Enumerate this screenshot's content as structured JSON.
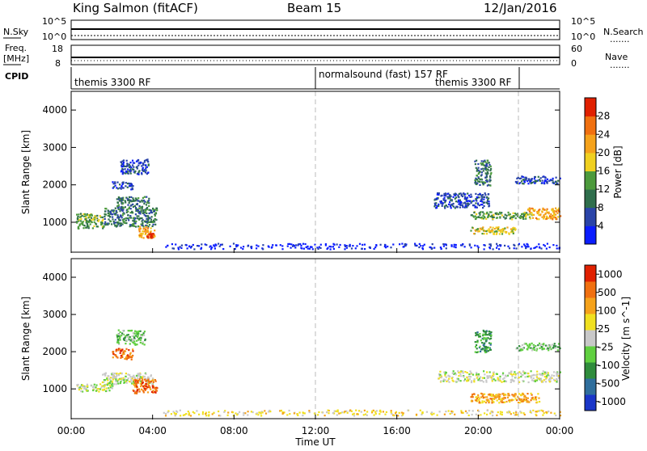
{
  "header": {
    "station": "King Salmon (fitACF)",
    "beam": "Beam 15",
    "date": "12/Jan/2016"
  },
  "left_labels": {
    "nsky": "N.Sky",
    "freq": "Freq.",
    "mhz": "[MHz]",
    "cpid": "CPID"
  },
  "right_labels": {
    "nsearch": "N.Search",
    "nave": "Nave",
    "dots": "......."
  },
  "noise_axis": {
    "left_top": "10^5",
    "left_bottom": "10^0",
    "right_top": "10^5",
    "right_bottom": "10^0"
  },
  "freq_axis": {
    "left_top": "18",
    "left_bottom": "8",
    "right_top": "60",
    "right_bottom": "0"
  },
  "cpid": [
    "themis 3300 RF",
    "normalsound (fast) 157 RF",
    "themis 3300 RF"
  ],
  "x_axis": {
    "label": "Time UT",
    "ticks": [
      "00:00",
      "04:00",
      "08:00",
      "12:00",
      "16:00",
      "20:00",
      "00:00"
    ]
  },
  "chart_data": [
    {
      "type": "heatmap",
      "ylabel": "Slant Range [km]",
      "yticks": [
        "1000",
        "2000",
        "3000",
        "4000"
      ],
      "ylim": [
        200,
        4500
      ],
      "xlim": [
        0,
        24
      ],
      "colorbar": {
        "label": "Power [dB]",
        "ticks": [
          "4",
          "8",
          "12",
          "16",
          "20",
          "24",
          "28"
        ],
        "colors": [
          "#0b1dff",
          "#2a44a8",
          "#2f6e4c",
          "#4c9a3c",
          "#f0d020",
          "#f5a21b",
          "#f07010",
          "#e02000"
        ]
      },
      "regions": [
        {
          "x": [
            0.2,
            1.6
          ],
          "y": [
            850,
            1250
          ],
          "level": 3
        },
        {
          "x": [
            1.6,
            4.2
          ],
          "y": [
            900,
            1400
          ],
          "level": 2
        },
        {
          "x": [
            2.2,
            3.8
          ],
          "y": [
            1400,
            1700
          ],
          "level": 2
        },
        {
          "x": [
            2.4,
            3.8
          ],
          "y": [
            2300,
            2700
          ],
          "level": 1
        },
        {
          "x": [
            3.3,
            4.1
          ],
          "y": [
            600,
            900
          ],
          "level": 5
        },
        {
          "x": [
            3.6,
            4.0
          ],
          "y": [
            600,
            720
          ],
          "level": 7
        },
        {
          "x": [
            2.0,
            3.0
          ],
          "y": [
            1900,
            2100
          ],
          "level": 1
        },
        {
          "x": [
            19.5,
            21.8
          ],
          "y": [
            700,
            900
          ],
          "level": 4
        },
        {
          "x": [
            19.6,
            22.6
          ],
          "y": [
            1100,
            1300
          ],
          "level": 3
        },
        {
          "x": [
            22.4,
            24.0
          ],
          "y": [
            1100,
            1400
          ],
          "level": 5
        },
        {
          "x": [
            19.8,
            20.6
          ],
          "y": [
            2000,
            2700
          ],
          "level": 2
        },
        {
          "x": [
            21.8,
            24.0
          ],
          "y": [
            2050,
            2250
          ],
          "level": 1
        },
        {
          "x": [
            17.8,
            20.5
          ],
          "y": [
            1400,
            1800
          ],
          "level": 1
        },
        {
          "x": [
            4.5,
            24.0
          ],
          "y": [
            300,
            450
          ],
          "level": 0
        }
      ]
    },
    {
      "type": "heatmap",
      "ylabel": "Slant Range [km]",
      "yticks": [
        "1000",
        "2000",
        "3000",
        "4000"
      ],
      "ylim": [
        200,
        4500
      ],
      "xlim": [
        0,
        24
      ],
      "colorbar": {
        "label": "Velocity [m s^-1]",
        "ticks": [
          "1000",
          "500",
          "100",
          "25",
          "-25",
          "-100",
          "-500",
          "-1000"
        ],
        "colors": [
          "#1a36c8",
          "#2f6e9c",
          "#2f8c3c",
          "#60d040",
          "#c8c8c8",
          "#f0e020",
          "#f5a21b",
          "#f07010",
          "#e02000"
        ]
      },
      "regions": [
        {
          "x": [
            0.2,
            2.0
          ],
          "y": [
            950,
            1150
          ],
          "level": 4
        },
        {
          "x": [
            1.5,
            4.0
          ],
          "y": [
            1150,
            1450
          ],
          "level": 4
        },
        {
          "x": [
            3.0,
            4.2
          ],
          "y": [
            900,
            1300
          ],
          "level": 7
        },
        {
          "x": [
            2.2,
            3.6
          ],
          "y": [
            2200,
            2600
          ],
          "level": 3
        },
        {
          "x": [
            2.0,
            3.0
          ],
          "y": [
            1800,
            2100
          ],
          "level": 7
        },
        {
          "x": [
            18.0,
            24.0
          ],
          "y": [
            1200,
            1500
          ],
          "level": 4
        },
        {
          "x": [
            19.6,
            23.0
          ],
          "y": [
            650,
            900
          ],
          "level": 6
        },
        {
          "x": [
            19.8,
            20.6
          ],
          "y": [
            2000,
            2600
          ],
          "level": 2
        },
        {
          "x": [
            21.8,
            24.0
          ],
          "y": [
            2050,
            2250
          ],
          "level": 3
        },
        {
          "x": [
            4.5,
            24.0
          ],
          "y": [
            300,
            450
          ],
          "level": 5
        }
      ]
    }
  ]
}
